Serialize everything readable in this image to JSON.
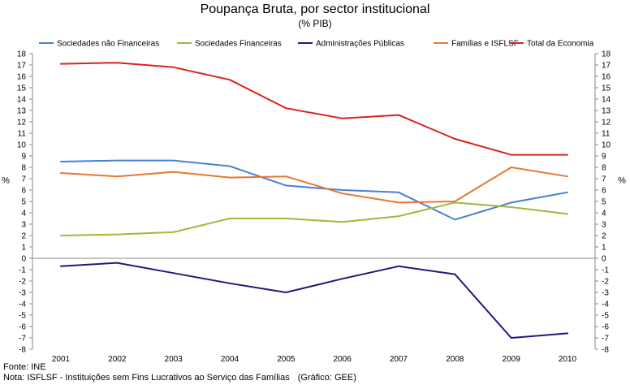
{
  "chart_data": {
    "type": "line",
    "title": "Poupança Bruta, por sector institucional",
    "subtitle": "(% PIB)",
    "xlabel": "",
    "ylabel": "%",
    "ylabel_right": "%",
    "ylim": [
      -8,
      18
    ],
    "yticks": [
      -8,
      -7,
      -6,
      -5,
      -4,
      -3,
      -2,
      -1,
      0,
      1,
      2,
      3,
      4,
      5,
      6,
      7,
      8,
      9,
      10,
      11,
      12,
      13,
      14,
      15,
      16,
      17,
      18
    ],
    "categories": [
      "2001",
      "2002",
      "2003",
      "2004",
      "2005",
      "2006",
      "2007",
      "2008",
      "2009",
      "2010"
    ],
    "series": [
      {
        "name": "Sociedades não Financeiras",
        "color": "#4a7fd4",
        "values": [
          8.5,
          8.6,
          8.6,
          8.1,
          6.4,
          6.0,
          5.8,
          3.4,
          4.9,
          5.8
        ]
      },
      {
        "name": "Sociedades Financeiras",
        "color": "#9bbb3c",
        "values": [
          2.0,
          2.1,
          2.3,
          3.5,
          3.5,
          3.2,
          3.7,
          4.9,
          4.5,
          3.9
        ]
      },
      {
        "name": "Administrações Públicas",
        "color": "#1c1c7a",
        "values": [
          -0.7,
          -0.4,
          -1.3,
          -2.2,
          -3.0,
          -1.8,
          -0.7,
          -1.4,
          -7.0,
          -6.6
        ]
      },
      {
        "name": "Famílias e ISFLSF",
        "color": "#e8772e",
        "values": [
          7.5,
          7.2,
          7.6,
          7.1,
          7.2,
          5.7,
          4.9,
          5.0,
          8.0,
          7.2
        ]
      },
      {
        "name": "Total da Economia",
        "color": "#d9231f",
        "values": [
          17.1,
          17.2,
          16.8,
          15.7,
          13.2,
          12.3,
          12.6,
          10.5,
          9.1,
          9.1
        ]
      }
    ],
    "legend_position": "top",
    "grid": false
  },
  "footer": {
    "source": "Fonte: INE",
    "note": "Nota: ISFLSF - Instituições sem Fins Lucrativos ao Serviço das Famílias",
    "credit": "(Gráfico: GEE)"
  }
}
